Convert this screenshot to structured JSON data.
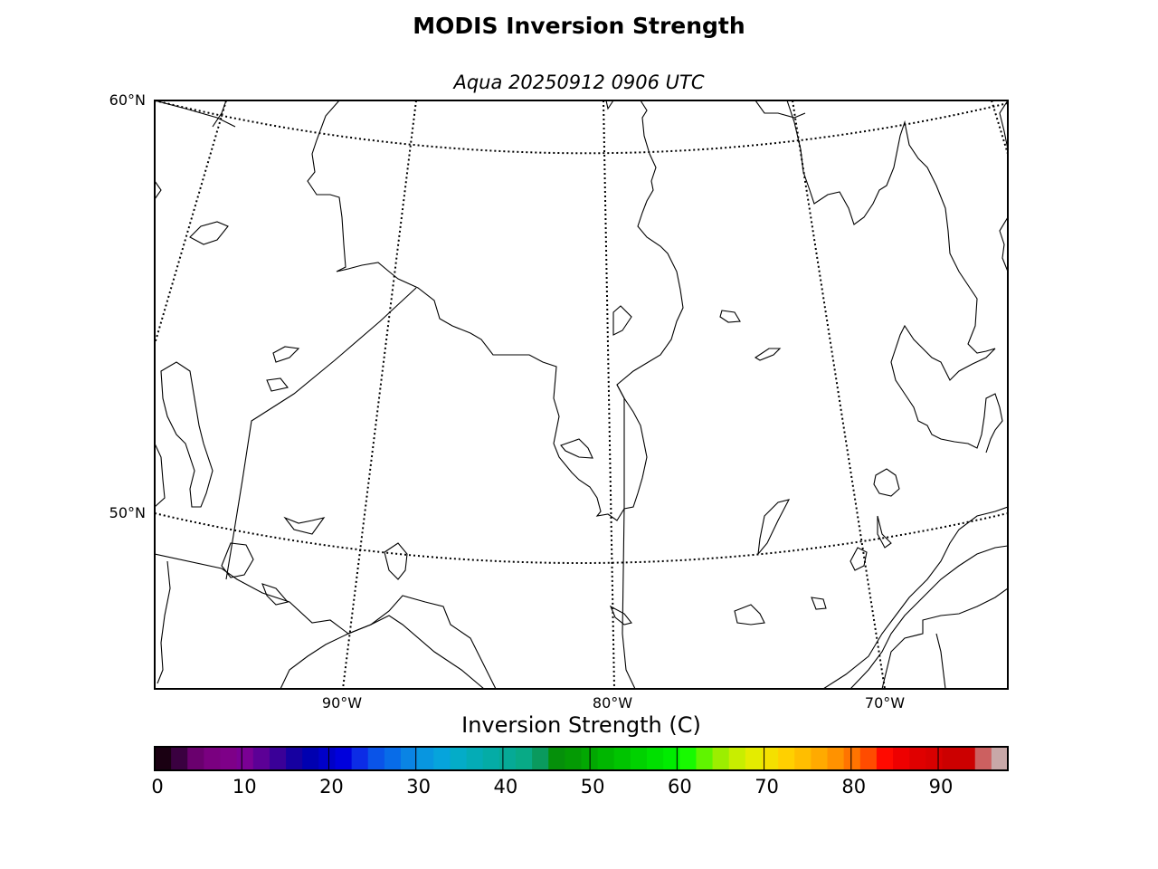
{
  "title": "MODIS Inversion Strength",
  "subtitle": "Aqua 20250912 0906 UTC",
  "map": {
    "lat_labels": [
      "60°N",
      "50°N"
    ],
    "lon_labels": [
      "90°W",
      "80°W",
      "70°W"
    ],
    "graticule_style": "dotted",
    "coastline_color": "#000000"
  },
  "colorbar": {
    "label": "Inversion Strength (C)",
    "ticks": [
      "0",
      "10",
      "20",
      "30",
      "40",
      "50",
      "60",
      "70",
      "80",
      "90"
    ],
    "range": [
      0,
      98
    ],
    "colors": [
      "#1a0012",
      "#3a0040",
      "#6a006e",
      "#7a0080",
      "#7e0088",
      "#7a0094",
      "#5c0096",
      "#3a0098",
      "#1600a0",
      "#0000b0",
      "#0000c8",
      "#0000dc",
      "#0c2ce6",
      "#0a54e8",
      "#086ce8",
      "#0a84e4",
      "#0896e0",
      "#06a4dc",
      "#04acc8",
      "#04acb6",
      "#04aca6",
      "#06aa96",
      "#08aa86",
      "#0a9a5e",
      "#05900a",
      "#049a04",
      "#02a802",
      "#00b600",
      "#00c400",
      "#00d200",
      "#00e000",
      "#00ec00",
      "#18fa00",
      "#60f400",
      "#9cee00",
      "#c8ee00",
      "#e4ec00",
      "#f4e000",
      "#ffd000",
      "#ffbe00",
      "#ffaa00",
      "#ff9200",
      "#ff7400",
      "#ff4c00",
      "#ff0a00",
      "#ee0000",
      "#e00000",
      "#d80000",
      "#cc0000",
      "#cc0000",
      "#cc6060",
      "#c8a8a8"
    ]
  }
}
